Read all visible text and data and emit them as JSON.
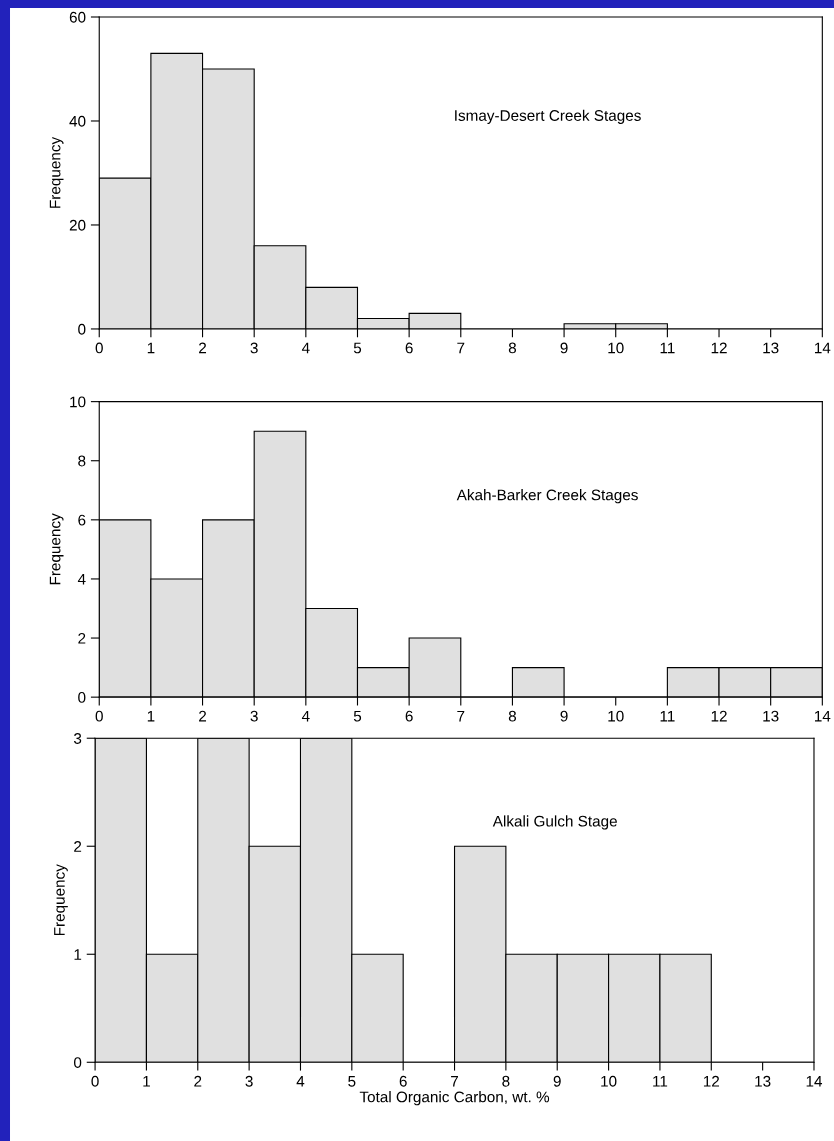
{
  "chart_data": [
    {
      "type": "histogram",
      "bins": [
        0,
        1,
        2,
        3,
        4,
        5,
        6,
        7,
        8,
        9,
        10,
        11,
        12,
        13,
        14
      ],
      "values": [
        29,
        53,
        50,
        16,
        8,
        2,
        3,
        0,
        0,
        1,
        1,
        0,
        0,
        0
      ],
      "color": "#e0e0e0",
      "ylabel": "Frequency",
      "annotations": [
        "Ismay-Desert Creek Stages"
      ],
      "xlim": [
        0,
        14
      ],
      "xticks": [
        0,
        1,
        2,
        3,
        4,
        5,
        6,
        7,
        8,
        9,
        10,
        11,
        12,
        13,
        14
      ],
      "ylim": [
        0,
        60
      ],
      "yticks": [
        0,
        20,
        40,
        60
      ],
      "grid": false,
      "legend": false
    },
    {
      "type": "histogram",
      "bins": [
        0,
        1,
        2,
        3,
        4,
        5,
        6,
        7,
        8,
        9,
        10,
        11,
        12,
        13,
        14
      ],
      "values": [
        6,
        4,
        6,
        9,
        3,
        1,
        2,
        0,
        1,
        0,
        0,
        1,
        1,
        1
      ],
      "color": "#e0e0e0",
      "ylabel": "Frequency",
      "annotations": [
        "Akah-Barker Creek Stages"
      ],
      "xlim": [
        0,
        14
      ],
      "xticks": [
        0,
        1,
        2,
        3,
        4,
        5,
        6,
        7,
        8,
        9,
        10,
        11,
        12,
        13,
        14
      ],
      "ylim": [
        0,
        10
      ],
      "yticks": [
        0,
        2,
        4,
        6,
        8,
        10
      ],
      "grid": false,
      "legend": false
    },
    {
      "type": "histogram",
      "bins": [
        0,
        1,
        2,
        3,
        4,
        5,
        6,
        7,
        8,
        9,
        10,
        11,
        12,
        13,
        14
      ],
      "values": [
        3,
        1,
        3,
        2,
        3,
        1,
        0,
        2,
        1,
        1,
        1,
        1,
        0,
        0
      ],
      "color": "#e0e0e0",
      "ylabel": "Frequency",
      "xlabel": "Total Organic Carbon, wt. %",
      "annotations": [
        "Alkali Gulch Stage"
      ],
      "xlim": [
        0,
        14
      ],
      "xticks": [
        0,
        1,
        2,
        3,
        4,
        5,
        6,
        7,
        8,
        9,
        10,
        11,
        12,
        13,
        14
      ],
      "ylim": [
        0,
        3
      ],
      "yticks": [
        0,
        1,
        2,
        3
      ],
      "grid": false,
      "legend": false
    }
  ]
}
